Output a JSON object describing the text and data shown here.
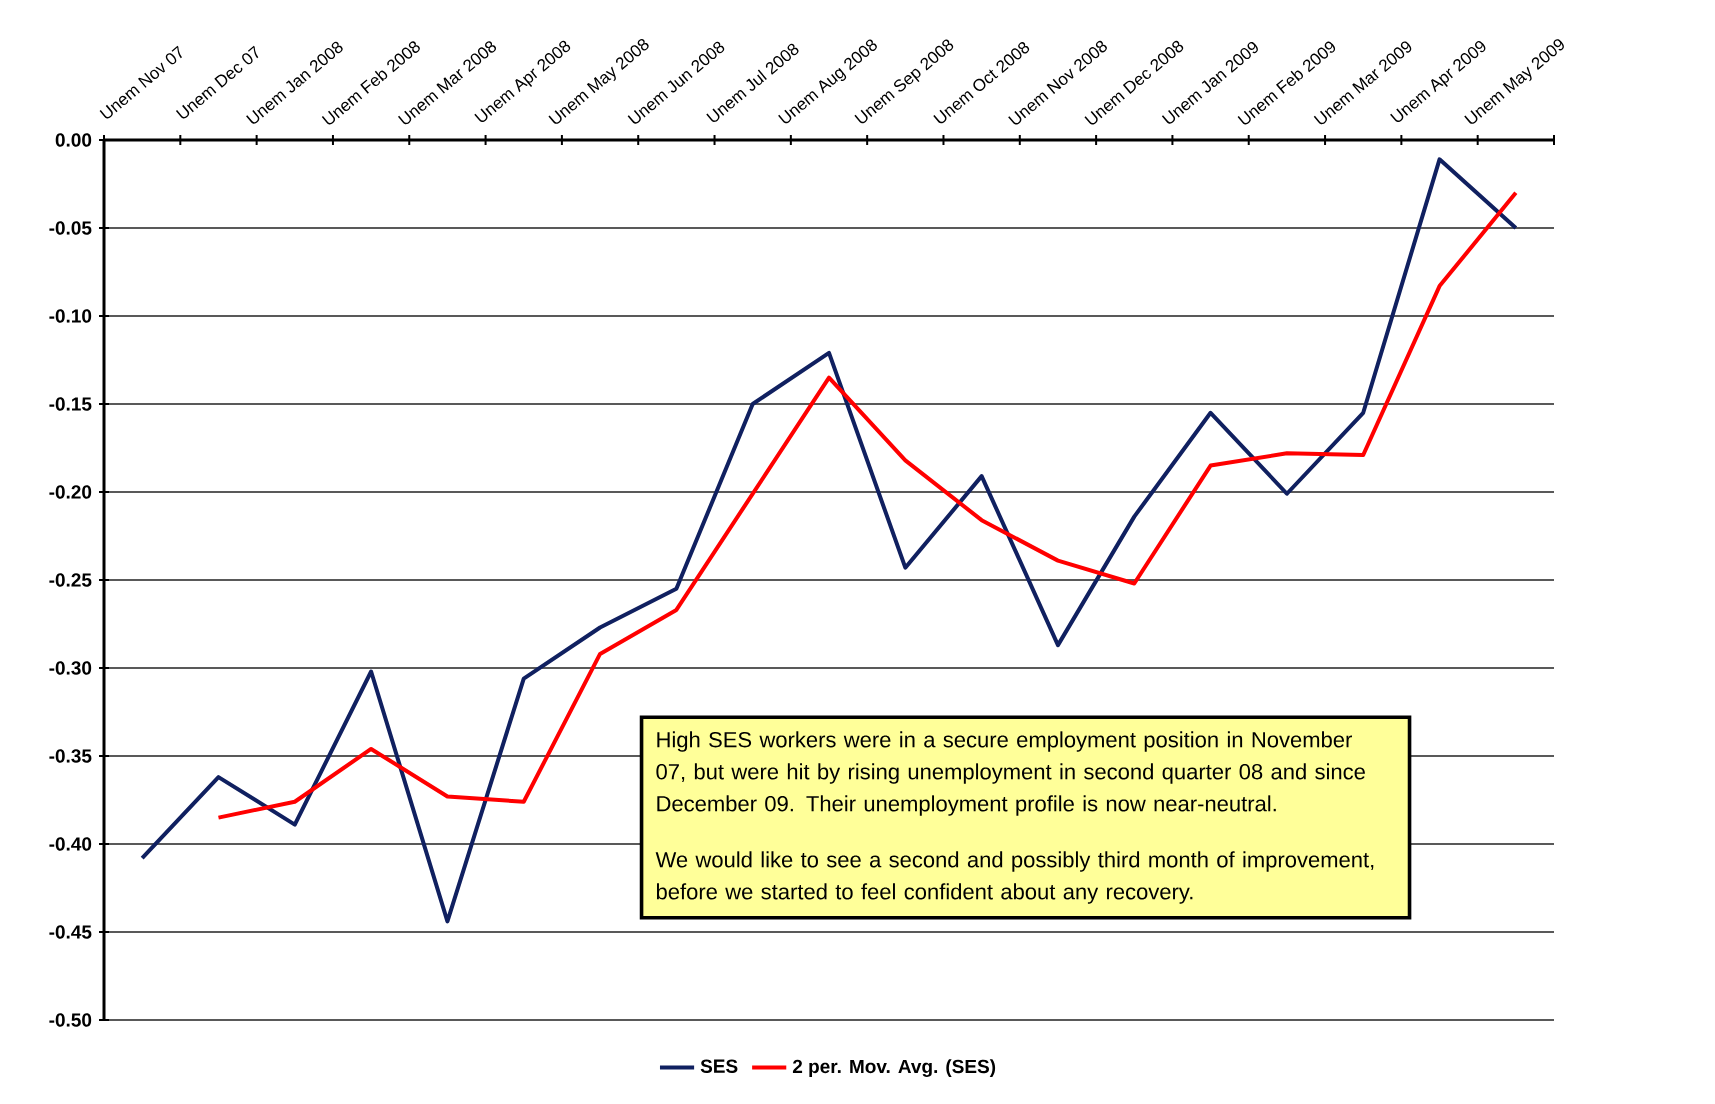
{
  "chart_data": {
    "type": "line",
    "categories": [
      "Unem Nov 07",
      "Unem Dec 07",
      "Unem Jan 2008",
      "Unem Feb 2008",
      "Unem Mar 2008",
      "Unem Apr 2008",
      "Unem May 2008",
      "Unem Jun 2008",
      "Unem Jul 2008",
      "Unem Aug 2008",
      "Unem Sep 2008",
      "Unem Oct 2008",
      "Unem Nov 2008",
      "Unem Dec 2008",
      "Unem Jan 2009",
      "Unem Feb 2009",
      "Unem Mar 2009",
      "Unem Apr 2009",
      "Unem May 2009"
    ],
    "series": [
      {
        "name": "SES",
        "color": "#102060",
        "values": [
          -0.408,
          -0.362,
          -0.389,
          -0.302,
          -0.444,
          -0.306,
          -0.277,
          -0.255,
          -0.15,
          -0.121,
          -0.243,
          -0.191,
          -0.287,
          -0.214,
          -0.155,
          -0.201,
          -0.155,
          -0.011,
          -0.05
        ]
      },
      {
        "name": "2 per. Mov. Avg. (SES)",
        "color": "#ff0000",
        "values": [
          null,
          -0.385,
          -0.376,
          -0.346,
          -0.373,
          -0.376,
          -0.292,
          -0.267,
          -0.201,
          -0.135,
          -0.182,
          -0.216,
          -0.239,
          -0.252,
          -0.185,
          -0.178,
          -0.179,
          -0.083,
          -0.03
        ]
      }
    ],
    "ylim": [
      -0.5,
      0.0
    ],
    "yticks": [
      {
        "value": 0.0,
        "label": "0.00"
      },
      {
        "value": -0.05,
        "label": "-0.05"
      },
      {
        "value": -0.1,
        "label": "-0.10"
      },
      {
        "value": -0.15,
        "label": "-0.15"
      },
      {
        "value": -0.2,
        "label": "-0.20"
      },
      {
        "value": -0.25,
        "label": "-0.25"
      },
      {
        "value": -0.3,
        "label": "-0.30"
      },
      {
        "value": -0.35,
        "label": "-0.35"
      },
      {
        "value": -0.4,
        "label": "-0.40"
      },
      {
        "value": -0.45,
        "label": "-0.45"
      },
      {
        "value": -0.5,
        "label": "-0.50"
      }
    ],
    "grid": "y",
    "legend": "bottom",
    "marker": "none",
    "line_style": "solid",
    "annotations": [
      "High SES workers were in a secure employment position in November 07, but were hit by rising unemployment in second quarter 08 and since December 09.  Their unemployment profile is now near-neutral.",
      "We would like to see a second and possibly third month of improvement, before we started to feel confident about any recovery."
    ]
  }
}
